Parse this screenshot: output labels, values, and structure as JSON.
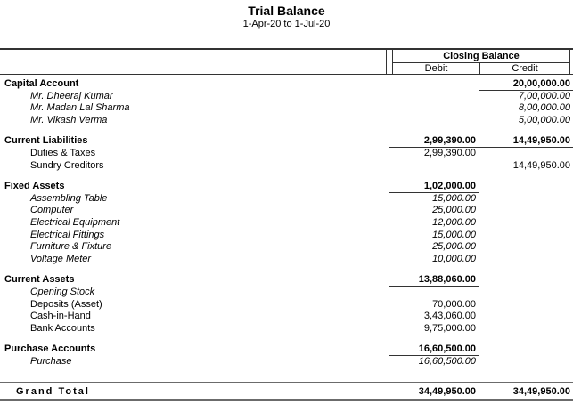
{
  "report": {
    "title": "Trial Balance",
    "period": "1-Apr-20 to 1-Jul-20"
  },
  "table": {
    "header": {
      "closing_balance_label": "Closing Balance",
      "debit_label": "Debit",
      "credit_label": "Credit"
    },
    "rows": [
      {
        "label": "Capital Account",
        "style": "group",
        "debit": "",
        "credit": "20,00,000.00",
        "underline_credit": true
      },
      {
        "label": "Mr. Dheeraj Kumar",
        "style": "ledger",
        "debit": "",
        "credit": "7,00,000.00"
      },
      {
        "label": "Mr. Madan Lal Sharma",
        "style": "ledger",
        "debit": "",
        "credit": "8,00,000.00"
      },
      {
        "label": "Mr. Vikash Verma",
        "style": "ledger",
        "debit": "",
        "credit": "5,00,000.00"
      },
      {
        "label": "Current Liabilities",
        "style": "group",
        "gap_before": true,
        "debit": "2,99,390.00",
        "credit": "14,49,950.00",
        "underline_debit": true,
        "underline_credit": true
      },
      {
        "label": "Duties & Taxes",
        "style": "subgroup",
        "debit": "2,99,390.00",
        "credit": ""
      },
      {
        "label": "Sundry Creditors",
        "style": "subgroup",
        "debit": "",
        "credit": "14,49,950.00"
      },
      {
        "label": "Fixed Assets",
        "style": "group",
        "gap_before": true,
        "debit": "1,02,000.00",
        "credit": "",
        "underline_debit": true
      },
      {
        "label": "Assembling Table",
        "style": "ledger",
        "debit": "15,000.00",
        "credit": ""
      },
      {
        "label": "Computer",
        "style": "ledger",
        "debit": "25,000.00",
        "credit": ""
      },
      {
        "label": "Electrical Equipment",
        "style": "ledger",
        "debit": "12,000.00",
        "credit": ""
      },
      {
        "label": "Electrical Fittings",
        "style": "ledger",
        "debit": "15,000.00",
        "credit": ""
      },
      {
        "label": "Furniture & Fixture",
        "style": "ledger",
        "debit": "25,000.00",
        "credit": ""
      },
      {
        "label": "Voltage Meter",
        "style": "ledger",
        "debit": "10,000.00",
        "credit": ""
      },
      {
        "label": "Current Assets",
        "style": "group",
        "gap_before": true,
        "debit": "13,88,060.00",
        "credit": "",
        "underline_debit": true
      },
      {
        "label": "Opening Stock",
        "style": "ledger",
        "debit": "",
        "credit": ""
      },
      {
        "label": "Deposits (Asset)",
        "style": "subgroup",
        "debit": "70,000.00",
        "credit": ""
      },
      {
        "label": "Cash-in-Hand",
        "style": "subgroup",
        "debit": "3,43,060.00",
        "credit": ""
      },
      {
        "label": "Bank Accounts",
        "style": "subgroup",
        "debit": "9,75,000.00",
        "credit": ""
      },
      {
        "label": "Purchase Accounts",
        "style": "group",
        "gap_before": true,
        "debit": "16,60,500.00",
        "credit": "",
        "underline_debit": true
      },
      {
        "label": "Purchase",
        "style": "ledger",
        "debit": "16,60,500.00",
        "credit": ""
      }
    ],
    "grand_total": {
      "label": "Grand Total",
      "debit": "34,49,950.00",
      "credit": "34,49,950.00"
    }
  },
  "colors": {
    "text": "#000000",
    "rule": "#333333",
    "double_rule": "#6b6b6b",
    "background": "#ffffff"
  }
}
